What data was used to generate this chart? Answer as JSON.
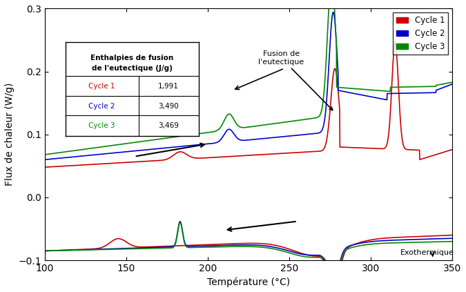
{
  "xlim": [
    100,
    350
  ],
  "ylim": [
    -0.1,
    0.3
  ],
  "xlabel": "Température (°C)",
  "ylabel": "Flux de chaleur (W/g)",
  "title": "",
  "cycle_colors": [
    "#cc0000",
    "#0000cc",
    "#008800"
  ],
  "cycle_labels": [
    "Cycle 1",
    "Cycle 2",
    "Cycle 3"
  ],
  "table_title": "Enthalpies de fusion\nde l'eutectique (J/g)",
  "table_data": [
    [
      "Cycle 1",
      "1,991"
    ],
    [
      "Cycle 2",
      "3,490"
    ],
    [
      "Cycle 3",
      "3,469"
    ]
  ],
  "annotation_fusion": "Fusion de\nl'eutectique",
  "annotation_exo": "Exothermique",
  "arrow1_heating": [
    160,
    0.072
  ],
  "arrow2_cooling": [
    230,
    -0.045
  ]
}
